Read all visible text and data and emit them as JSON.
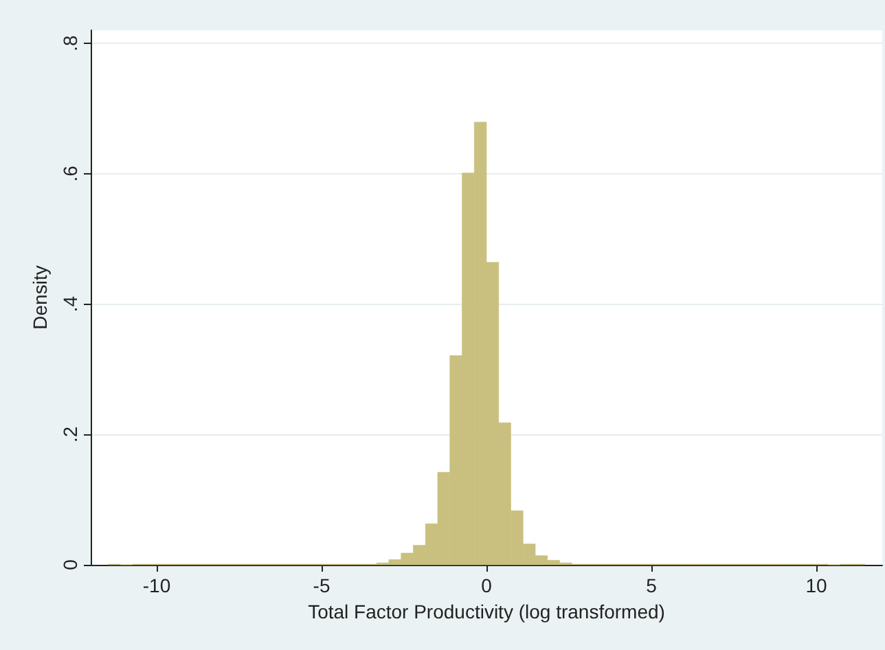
{
  "chart_data": {
    "type": "histogram",
    "xlabel": "Total Factor Productivity (log transformed)",
    "ylabel": "Density",
    "color": "#c9c07f",
    "bins": [
      -11.47,
      -11.1,
      -10.73,
      -10.36,
      -9.99,
      -9.62,
      -9.25,
      -8.88,
      -8.51,
      -8.14,
      -7.77,
      -7.4,
      -7.03,
      -6.66,
      -6.29,
      -5.92,
      -5.55,
      -5.18,
      -4.81,
      -4.44,
      -4.07,
      -3.7,
      -3.33,
      -2.96,
      -2.59,
      -2.22,
      -1.85,
      -1.48,
      -1.11,
      -0.74,
      -0.37,
      0,
      0.37,
      0.74,
      1.11,
      1.48,
      1.85,
      2.22,
      2.59,
      2.96,
      3.33,
      3.7,
      4.07,
      4.44,
      4.81,
      5.18,
      5.55,
      5.92,
      6.29,
      6.66,
      7.03,
      7.4,
      7.77,
      8.14,
      8.51,
      8.88,
      9.25,
      9.62,
      9.99,
      10.36,
      10.73,
      11.1,
      11.47
    ],
    "values": [
      0.001,
      0,
      0.001,
      0.001,
      0.001,
      0.001,
      0.001,
      0.001,
      0.001,
      0.001,
      0.001,
      0.001,
      0.001,
      0.001,
      0.001,
      0.001,
      0.001,
      0.001,
      0.001,
      0.001,
      0.001,
      0.001,
      0.003,
      0.008,
      0.018,
      0.03,
      0.063,
      0.142,
      0.321,
      0.601,
      0.679,
      0.464,
      0.218,
      0.083,
      0.032,
      0.014,
      0.007,
      0.003,
      0.001,
      0.001,
      0.001,
      0.001,
      0.001,
      0.001,
      0.001,
      0.001,
      0.001,
      0.001,
      0.001,
      0.001,
      0.001,
      0.001,
      0.001,
      0.001,
      0.001,
      0.001,
      0.001,
      0.001,
      0.001,
      0,
      0.001,
      0.001
    ],
    "xlim": [
      -12,
      12
    ],
    "xticks": [
      -10,
      -5,
      0,
      5,
      10
    ],
    "ylim": [
      0,
      0.82
    ],
    "yticks": [
      0,
      {
        "value": 0.2,
        "label": ".2"
      },
      {
        "value": 0.4,
        "label": ".4"
      },
      {
        "value": 0.6,
        "label": ".6"
      },
      {
        "value": 0.8,
        "label": ".8"
      }
    ],
    "grid": "y"
  }
}
